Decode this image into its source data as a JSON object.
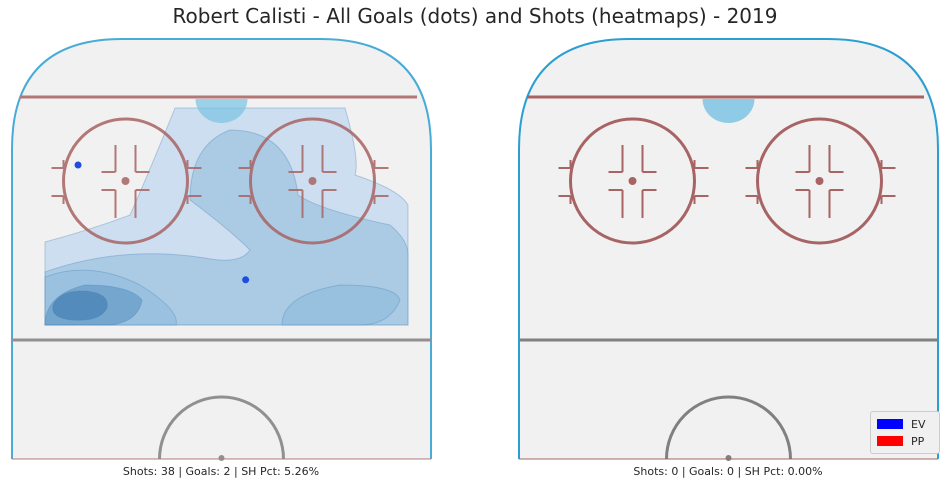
{
  "title": "Robert Calisti - All Goals (dots) and Shots (heatmaps) - 2019",
  "chart_data": [
    {
      "type": "scatter",
      "panel": "left",
      "caption": "Shots: 38 | Goals: 2 | SH Pct: 5.26%",
      "shots": 38,
      "goals_count": 2,
      "sh_pct": 5.26,
      "goals": [
        {
          "x": 5.0,
          "y": 57.0,
          "strength": "EV"
        },
        {
          "x": -29.0,
          "y": 77.5,
          "strength": "EV"
        }
      ],
      "heatmap": "kernel density of shot locations (blue), densest near lower-left slot and lower-right",
      "xlim": [
        -42.5,
        42.5
      ],
      "ylim": [
        25,
        100
      ]
    },
    {
      "type": "scatter",
      "panel": "right",
      "caption": "Shots: 0 | Goals: 0 | SH Pct: 0.00%",
      "shots": 0,
      "goals_count": 0,
      "sh_pct": 0.0,
      "goals": [],
      "xlim": [
        -42.5,
        42.5
      ],
      "ylim": [
        25,
        100
      ]
    }
  ],
  "legend": [
    {
      "label": "EV",
      "color": "#0000ff"
    },
    {
      "label": "PP",
      "color": "#ff0000"
    }
  ],
  "colors": {
    "boards": "#2a9fd1",
    "ice": "#f1f1f1",
    "goal_line": "#a86464",
    "circle": "#a86464",
    "blue_line": "#808080",
    "crease": "#7ec4e4",
    "heat_light": "#c6dbef",
    "heat_mid": "#8fbcdc",
    "heat_dark": "#4a84b8",
    "goal_dot": "#1f4de0"
  }
}
